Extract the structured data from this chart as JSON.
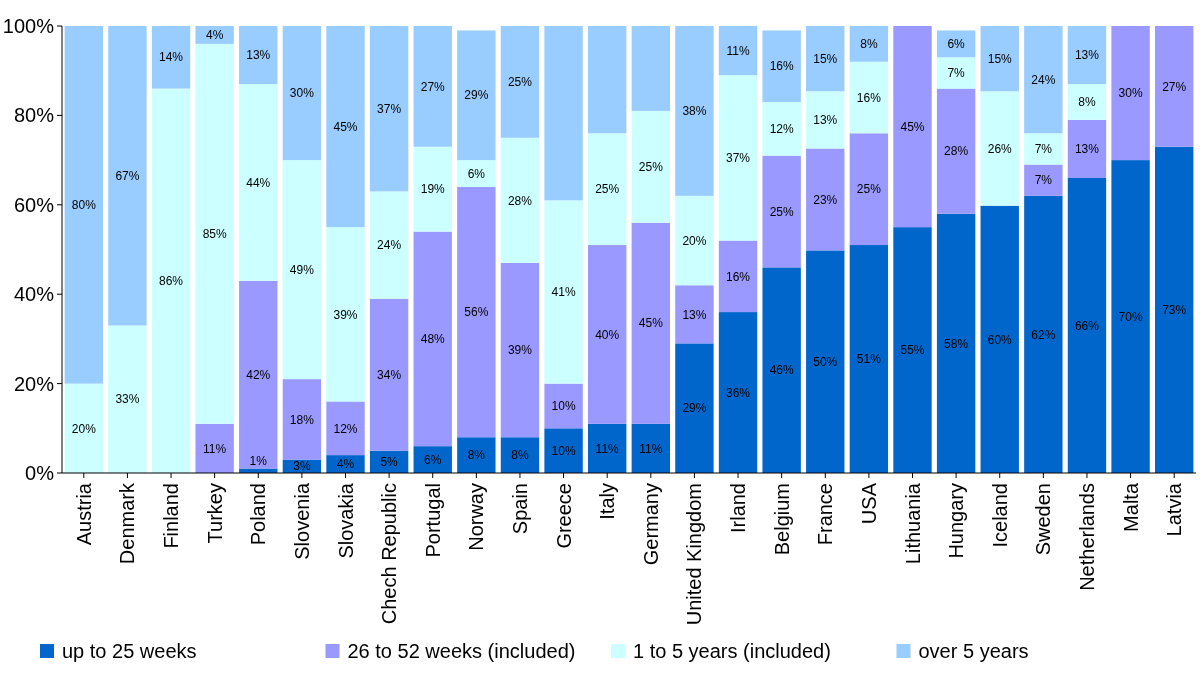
{
  "chart_data": {
    "type": "bar",
    "stacked": true,
    "legend": "bottom",
    "categories": [
      "Austria",
      "Denmark",
      "Finland",
      "Turkey",
      "Poland",
      "Slovenia",
      "Slovakia",
      "Chech Republic",
      "Portugal",
      "Norway",
      "Spain",
      "Greece",
      "Italy",
      "Germany",
      "United Kingdom",
      "Irland",
      "Belgium",
      "France",
      "USA",
      "Lithuania",
      "Hungary",
      "Iceland",
      "Sweden",
      "Netherlands",
      "Malta",
      "Latvia"
    ],
    "ylim": [
      0,
      100
    ],
    "yticks": [
      {
        "value": 0,
        "label": "0%"
      },
      {
        "value": 20,
        "label": "20%"
      },
      {
        "value": 40,
        "label": "40%"
      },
      {
        "value": 60,
        "label": "60%"
      },
      {
        "value": 80,
        "label": "80%"
      },
      {
        "value": 100,
        "label": "100%"
      }
    ],
    "series": [
      {
        "name": "up to 25 weeks",
        "color": "#0066cc",
        "values": [
          0,
          0,
          0,
          0,
          1,
          3,
          4,
          5,
          6,
          8,
          8,
          10,
          11,
          11,
          29,
          36,
          46,
          49.8,
          51,
          55,
          58,
          59.8,
          62,
          66,
          70,
          73
        ],
        "value_labels": [
          null,
          null,
          null,
          null,
          "1%",
          "3%",
          "4%",
          "5%",
          "6%",
          "8%",
          "8%",
          "10%",
          "11%",
          "11%",
          "29%",
          "36%",
          "46%",
          "50%",
          "51%",
          "55%",
          "58%",
          "60%",
          "62%",
          "66%",
          "70%",
          "73%"
        ]
      },
      {
        "name": "26 to 52 weeks (included)",
        "color": "#9999ff",
        "values": [
          0,
          0,
          0,
          11,
          42,
          18,
          12,
          34,
          48,
          56,
          39,
          10,
          40,
          45,
          13,
          16,
          25,
          22.8,
          25,
          45,
          28,
          0,
          7,
          13,
          30,
          27
        ],
        "value_labels": [
          null,
          null,
          null,
          "11%",
          "42%",
          "18%",
          "12%",
          "34%",
          "48%",
          "56%",
          "39%",
          "10%",
          "40%",
          "45%",
          "13%",
          "16%",
          "25%",
          "23%",
          "25%",
          "45%",
          "28%",
          null,
          "7%",
          "13%",
          "30%",
          "27%"
        ]
      },
      {
        "name": "1 to 5 years (included)",
        "color": "#ccffff",
        "values": [
          20,
          33,
          86,
          85,
          44,
          49,
          39,
          24,
          19,
          6,
          28,
          41,
          25,
          25,
          20,
          37,
          12,
          12.8,
          16,
          0,
          7,
          25.6,
          7,
          8,
          0,
          0
        ],
        "value_labels": [
          "20%",
          "33%",
          "86%",
          "85%",
          "44%",
          "49%",
          "39%",
          "24%",
          "19%",
          "6%",
          "28%",
          "41%",
          "25%",
          "25%",
          "20%",
          "37%",
          "12%",
          "13%",
          "16%",
          null,
          "7%",
          "26%",
          "7%",
          "8%",
          null,
          null
        ]
      },
      {
        "name": "over 5 years",
        "color": "#99ccff",
        "values": [
          80,
          67,
          14,
          4,
          13,
          30,
          45,
          37,
          27,
          29,
          25,
          39,
          24,
          19,
          38,
          11,
          16,
          14.6,
          8,
          0,
          6,
          14.6,
          24,
          13,
          0,
          0
        ],
        "value_labels": [
          "80%",
          "67%",
          "14%",
          "4%",
          "13%",
          "30%",
          "45%",
          "37%",
          "27%",
          "29%",
          "25%",
          null,
          null,
          null,
          "38%",
          "11%",
          "16%",
          "15%",
          "8%",
          null,
          "6%",
          "15%",
          "24%",
          "13%",
          null,
          null
        ]
      }
    ]
  }
}
